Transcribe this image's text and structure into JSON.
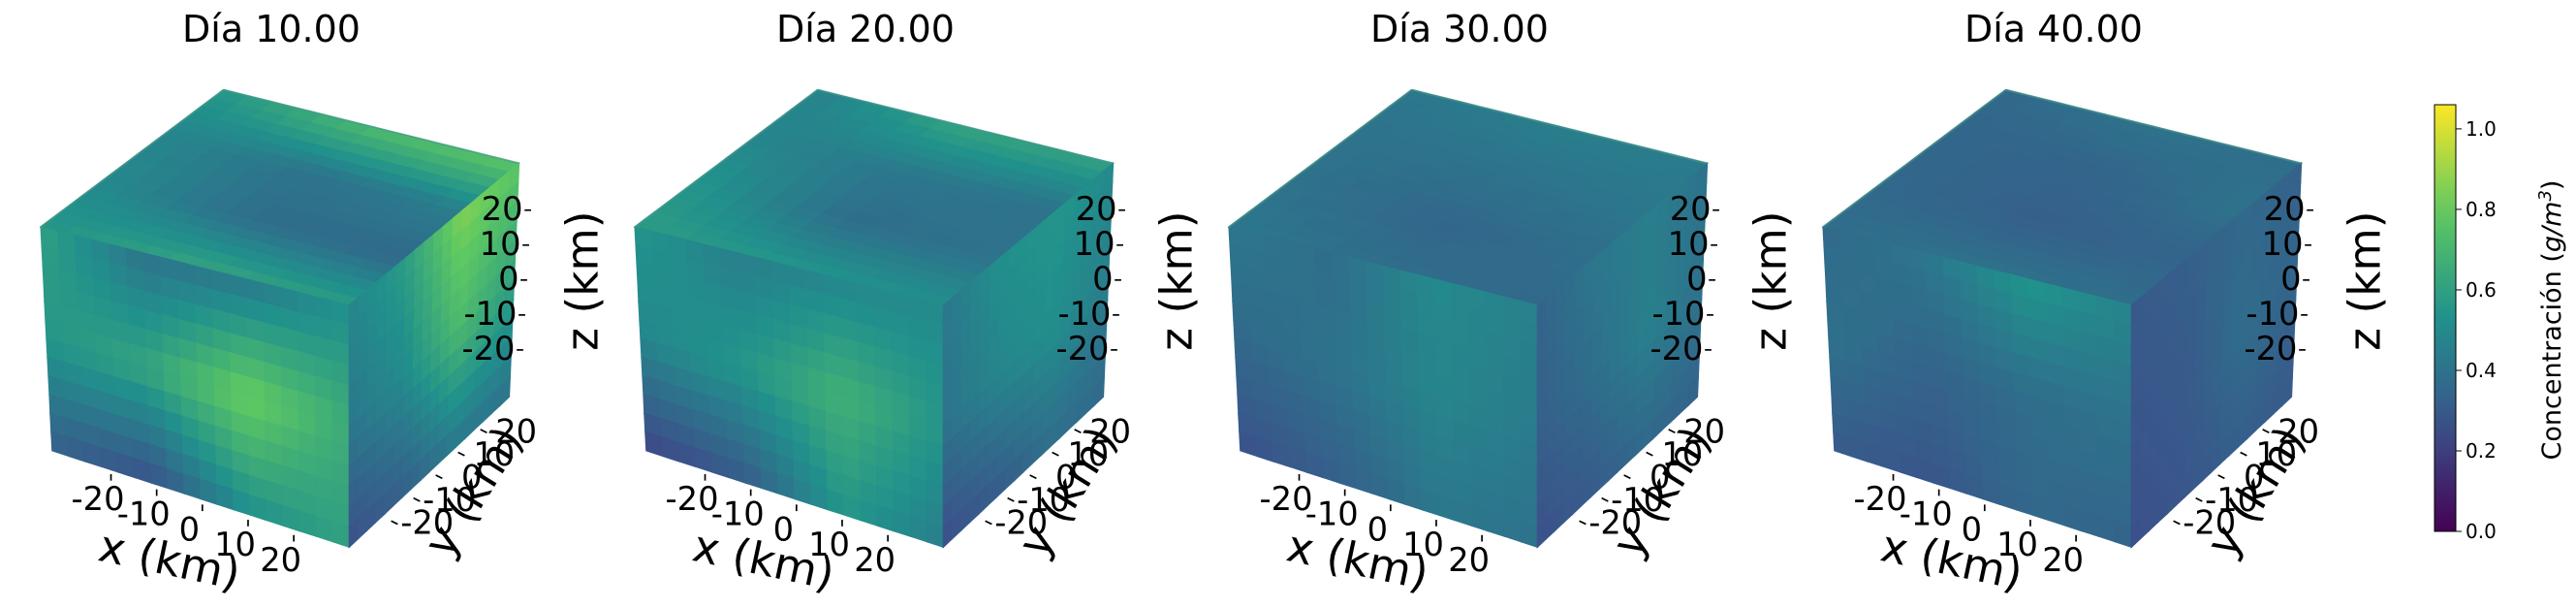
{
  "chart_data": {
    "type": "heatmap",
    "variant": "3d-volume-cubes",
    "colormap": "viridis",
    "colors": {
      "cmap_stops": [
        "#440154",
        "#3b528b",
        "#21918c",
        "#5ec962",
        "#fde725"
      ],
      "text": "#000000"
    },
    "panels": [
      {
        "title": "Día 10.00",
        "day": 10.0,
        "face_concentration": {
          "top": [
            [
              0.55,
              0.5,
              0.48,
              0.55
            ],
            [
              0.62,
              0.38,
              0.4,
              0.72
            ],
            [
              0.58,
              0.36,
              0.45,
              0.78
            ]
          ],
          "front": [
            [
              0.6,
              0.4,
              0.42,
              0.52
            ],
            [
              0.55,
              0.62,
              0.82,
              0.65
            ],
            [
              0.32,
              0.26,
              0.52,
              0.6
            ]
          ],
          "side": [
            [
              0.48,
              0.58,
              0.86,
              0.78
            ],
            [
              0.42,
              0.5,
              0.72,
              0.6
            ],
            [
              0.26,
              0.32,
              0.42,
              0.4
            ]
          ]
        }
      },
      {
        "title": "Día 20.00",
        "day": 20.0,
        "face_concentration": {
          "top": [
            [
              0.58,
              0.55,
              0.48,
              0.46
            ],
            [
              0.55,
              0.38,
              0.42,
              0.62
            ],
            [
              0.52,
              0.4,
              0.4,
              0.6
            ]
          ],
          "front": [
            [
              0.55,
              0.45,
              0.48,
              0.5
            ],
            [
              0.48,
              0.55,
              0.68,
              0.55
            ],
            [
              0.22,
              0.3,
              0.55,
              0.45
            ]
          ],
          "side": [
            [
              0.42,
              0.52,
              0.55,
              0.5
            ],
            [
              0.4,
              0.48,
              0.52,
              0.45
            ],
            [
              0.25,
              0.3,
              0.38,
              0.36
            ]
          ]
        }
      },
      {
        "title": "Día 30.00",
        "day": 30.0,
        "face_concentration": {
          "top": [
            [
              0.42,
              0.4,
              0.4,
              0.42
            ],
            [
              0.38,
              0.35,
              0.4,
              0.45
            ],
            [
              0.36,
              0.38,
              0.42,
              0.44
            ]
          ],
          "front": [
            [
              0.42,
              0.38,
              0.5,
              0.46
            ],
            [
              0.36,
              0.4,
              0.48,
              0.44
            ],
            [
              0.26,
              0.32,
              0.42,
              0.4
            ]
          ],
          "side": [
            [
              0.34,
              0.42,
              0.45,
              0.4
            ],
            [
              0.32,
              0.38,
              0.46,
              0.4
            ],
            [
              0.26,
              0.3,
              0.36,
              0.34
            ]
          ]
        }
      },
      {
        "title": "Día 40.00",
        "day": 40.0,
        "face_concentration": {
          "top": [
            [
              0.38,
              0.36,
              0.35,
              0.36
            ],
            [
              0.4,
              0.32,
              0.34,
              0.4
            ],
            [
              0.38,
              0.34,
              0.4,
              0.38
            ]
          ],
          "front": [
            [
              0.36,
              0.42,
              0.55,
              0.48
            ],
            [
              0.4,
              0.34,
              0.38,
              0.4
            ],
            [
              0.3,
              0.28,
              0.36,
              0.34
            ]
          ],
          "side": [
            [
              0.3,
              0.32,
              0.36,
              0.33
            ],
            [
              0.28,
              0.3,
              0.38,
              0.34
            ],
            [
              0.26,
              0.28,
              0.32,
              0.3
            ]
          ]
        }
      }
    ],
    "axes": {
      "x": {
        "label": "x (km)",
        "ticks": [
          -20,
          -10,
          0,
          10,
          20
        ],
        "lim": [
          -25,
          25
        ]
      },
      "y": {
        "label": "y (km)",
        "ticks": [
          -20,
          -10,
          0,
          10,
          20
        ],
        "lim": [
          -25,
          25
        ]
      },
      "z": {
        "label": "z (km)",
        "ticks": [
          -20,
          -10,
          0,
          10,
          20
        ],
        "lim": [
          -25,
          25
        ]
      }
    },
    "colorbar": {
      "label": "Concentración (g/m³)",
      "label_main": "Concentración (",
      "label_unit": "g/m",
      "label_exp": "3",
      "label_close": ")",
      "ticks": [
        0.0,
        0.2,
        0.4,
        0.6,
        0.8,
        1.0
      ],
      "tick_labels": [
        "0.0",
        "0.2",
        "0.4",
        "0.6",
        "0.8",
        "1.0"
      ],
      "lim": [
        0.0,
        1.06
      ]
    },
    "grid": false
  }
}
